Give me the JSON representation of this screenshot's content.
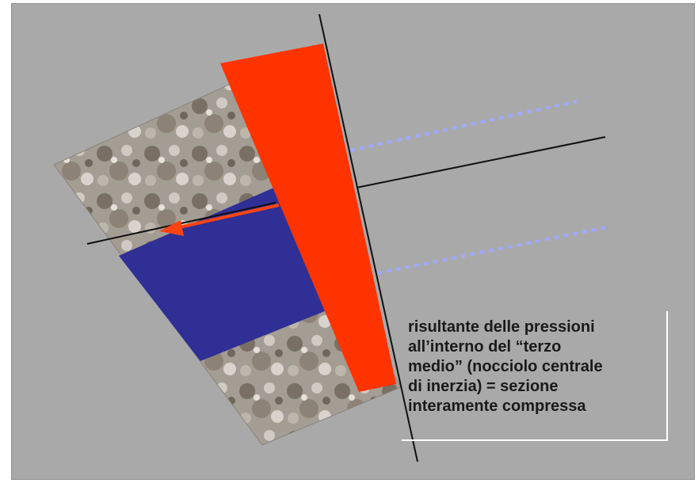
{
  "caption": {
    "text": "risultante delle pressioni\nall’interno del “terzo\nmedio” (nocciolo centrale\ndi inerzia) = sezione\ninteramente compressa"
  },
  "colors": {
    "background": "#a9a9a9",
    "pressure_diagram": "#ff3300",
    "compressed_zone": "#2f2f96",
    "resultant_arrow": "#ff4411",
    "projection_lines": "#9fa8ff",
    "axes": "#111111",
    "caption_border": "#ffffff"
  }
}
